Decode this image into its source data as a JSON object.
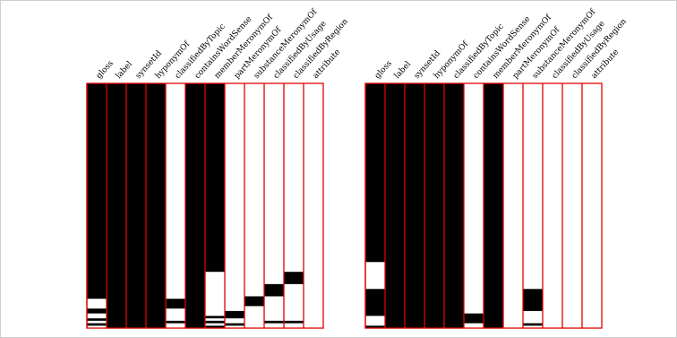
{
  "chart_data": {
    "type": "heatmap",
    "value_scale": "fraction of column height, measured from the top",
    "colors": {
      "filled": "#000000",
      "empty": "#ffffff",
      "border": "#e00000",
      "frame": "#cfcfcf"
    },
    "panels": [
      {
        "columns": [
          {
            "label": "gloss",
            "segments": [
              [
                0.0,
                0.88
              ],
              [
                0.92,
                0.94
              ],
              [
                0.96,
                0.97
              ],
              [
                0.98,
                0.99
              ]
            ]
          },
          {
            "label": "label",
            "segments": [
              [
                0.0,
                1.0
              ]
            ]
          },
          {
            "label": "synsetId",
            "segments": [
              [
                0.0,
                1.0
              ]
            ]
          },
          {
            "label": "hyponymOf",
            "segments": [
              [
                0.0,
                1.0
              ]
            ]
          },
          {
            "label": "classifiedByTopic",
            "segments": [
              [
                0.88,
                0.92
              ],
              [
                0.97,
                0.98
              ]
            ]
          },
          {
            "label": "containsWordSense",
            "segments": [
              [
                0.0,
                1.0
              ]
            ]
          },
          {
            "label": "memberMeronymOf",
            "segments": [
              [
                0.0,
                0.77
              ],
              [
                0.95,
                0.96
              ],
              [
                0.97,
                0.98
              ],
              [
                0.99,
                1.0
              ]
            ]
          },
          {
            "label": "partMeronymOf",
            "segments": [
              [
                0.93,
                0.96
              ],
              [
                0.98,
                0.99
              ]
            ]
          },
          {
            "label": "substanceMeronymOf",
            "segments": [
              [
                0.87,
                0.91
              ]
            ]
          },
          {
            "label": "classifiedByUsage",
            "segments": [
              [
                0.82,
                0.87
              ],
              [
                0.97,
                0.98
              ]
            ]
          },
          {
            "label": "classifiedByRegion",
            "segments": [
              [
                0.77,
                0.82
              ],
              [
                0.97,
                0.98
              ]
            ]
          },
          {
            "label": "attribute",
            "segments": []
          }
        ]
      },
      {
        "columns": [
          {
            "label": "gloss",
            "segments": [
              [
                0.0,
                0.73
              ],
              [
                0.84,
                0.95
              ],
              [
                0.99,
                1.0
              ]
            ]
          },
          {
            "label": "label",
            "segments": [
              [
                0.0,
                1.0
              ]
            ]
          },
          {
            "label": "synsetId",
            "segments": [
              [
                0.0,
                1.0
              ]
            ]
          },
          {
            "label": "hyponymOf",
            "segments": [
              [
                0.0,
                1.0
              ]
            ]
          },
          {
            "label": "classifiedByTopic",
            "segments": [
              [
                0.0,
                1.0
              ]
            ]
          },
          {
            "label": "containsWordSense",
            "segments": [
              [
                0.94,
                0.98
              ]
            ]
          },
          {
            "label": "memberMeronymOf",
            "segments": [
              [
                0.0,
                1.0
              ]
            ]
          },
          {
            "label": "partMeronymOf",
            "segments": []
          },
          {
            "label": "substanceMeronymOf",
            "segments": [
              [
                0.84,
                0.93
              ],
              [
                0.98,
                0.99
              ]
            ]
          },
          {
            "label": "classifiedByUsage",
            "segments": []
          },
          {
            "label": "classifiedByRegion",
            "segments": []
          },
          {
            "label": "attribute",
            "segments": []
          }
        ]
      }
    ]
  }
}
